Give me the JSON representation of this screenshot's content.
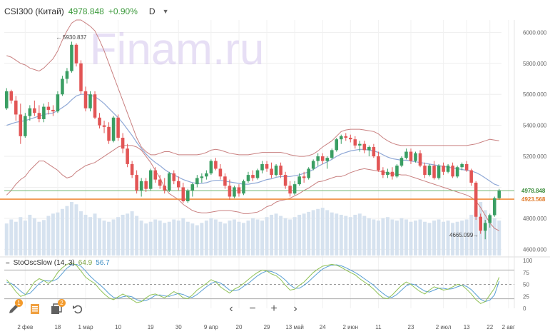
{
  "header": {
    "symbol": "CSI300 (Китай)",
    "price": "4978.848",
    "change": "+0.90%",
    "timeframe": "D"
  },
  "watermark": "Finam.ru",
  "price_axis": {
    "ticks": [
      "6000.000",
      "5800.000",
      "5600.000",
      "5400.000",
      "5200.000",
      "4800.000",
      "4600.000"
    ],
    "last_price_label": "4978.848",
    "level_label": "4923.568",
    "colors": {
      "last": "#6fb56f",
      "level": "#f08c3c"
    }
  },
  "annotations": {
    "high": "5930.837",
    "low": "4665.099"
  },
  "time_axis": [
    "2 фев",
    "18",
    "1 мар",
    "10",
    "19",
    "30",
    "9 апр",
    "20",
    "29",
    "13 май",
    "24",
    "2 июн",
    "11",
    "23",
    "2 июл",
    "13",
    "22",
    "2 авг"
  ],
  "oscillator": {
    "name": "StoOscSlow (14, 3)",
    "k_value": "64.9",
    "d_value": "56.7",
    "ticks": [
      "100",
      "75",
      "50",
      "25",
      "0"
    ],
    "colors": {
      "k": "#8fc154",
      "d": "#5a9fd4"
    }
  },
  "toolbar": [
    {
      "icon": "pencil-icon",
      "badge": "1"
    },
    {
      "icon": "document-icon",
      "badge": ""
    },
    {
      "icon": "indicators-icon",
      "badge": "2"
    },
    {
      "icon": "undo-icon",
      "badge": ""
    }
  ],
  "navbar": [
    "chevron-left-icon",
    "zoom-out-icon",
    "zoom-in-icon",
    "chevron-right-icon"
  ],
  "colors": {
    "up": "#3a9e63",
    "down": "#e25555",
    "bb": "#c98080",
    "ma": "#8fa8d6",
    "volume": "#d6e2ef"
  },
  "chart_data": {
    "type": "candlestick",
    "interval": "D",
    "y_range": [
      4560,
      6080
    ],
    "note_volume": "relative volume bars (unitless)",
    "ohlc": [
      [
        5510,
        5640,
        5500,
        5620
      ],
      [
        5620,
        5630,
        5540,
        5560
      ],
      [
        5560,
        5590,
        5430,
        5470
      ],
      [
        5470,
        5540,
        5280,
        5330
      ],
      [
        5330,
        5480,
        5320,
        5460
      ],
      [
        5460,
        5530,
        5430,
        5510
      ],
      [
        5510,
        5560,
        5460,
        5480
      ],
      [
        5480,
        5530,
        5420,
        5440
      ],
      [
        5440,
        5540,
        5420,
        5520
      ],
      [
        5520,
        5550,
        5470,
        5500
      ],
      [
        5500,
        5530,
        5460,
        5490
      ],
      [
        5490,
        5620,
        5480,
        5600
      ],
      [
        5600,
        5720,
        5590,
        5700
      ],
      [
        5700,
        5770,
        5670,
        5750
      ],
      [
        5750,
        5940,
        5740,
        5920
      ],
      [
        5920,
        5930,
        5780,
        5800
      ],
      [
        5800,
        5820,
        5600,
        5620
      ],
      [
        5620,
        5650,
        5490,
        5510
      ],
      [
        5510,
        5620,
        5490,
        5600
      ],
      [
        5600,
        5620,
        5440,
        5450
      ],
      [
        5450,
        5480,
        5380,
        5400
      ],
      [
        5400,
        5430,
        5350,
        5390
      ],
      [
        5390,
        5420,
        5280,
        5300
      ],
      [
        5300,
        5460,
        5290,
        5450
      ],
      [
        5450,
        5470,
        5300,
        5320
      ],
      [
        5320,
        5350,
        5220,
        5250
      ],
      [
        5250,
        5280,
        5130,
        5150
      ],
      [
        5150,
        5170,
        5060,
        5080
      ],
      [
        5080,
        5110,
        4960,
        4980
      ],
      [
        4980,
        5060,
        4940,
        5040
      ],
      [
        5040,
        5060,
        4970,
        4990
      ],
      [
        4990,
        5120,
        4980,
        5110
      ],
      [
        5110,
        5130,
        5030,
        5050
      ],
      [
        5050,
        5080,
        4990,
        5010
      ],
      [
        5010,
        5060,
        4960,
        4980
      ],
      [
        4980,
        5100,
        4970,
        5090
      ],
      [
        5090,
        5110,
        5020,
        5040
      ],
      [
        5040,
        5070,
        4980,
        5000
      ],
      [
        5000,
        5030,
        4900,
        4910
      ],
      [
        4910,
        4990,
        4900,
        4980
      ],
      [
        4980,
        5030,
        4940,
        5020
      ],
      [
        5020,
        5080,
        5000,
        5060
      ],
      [
        5060,
        5090,
        5030,
        5070
      ],
      [
        5070,
        5110,
        5050,
        5090
      ],
      [
        5090,
        5180,
        5080,
        5170
      ],
      [
        5170,
        5190,
        5110,
        5120
      ],
      [
        5120,
        5150,
        5050,
        5070
      ],
      [
        5070,
        5090,
        4990,
        5010
      ],
      [
        5010,
        5050,
        4920,
        4940
      ],
      [
        4940,
        5010,
        4930,
        5000
      ],
      [
        5000,
        5020,
        4940,
        4960
      ],
      [
        4960,
        5050,
        4950,
        5040
      ],
      [
        5040,
        5100,
        5030,
        5080
      ],
      [
        5080,
        5110,
        5040,
        5060
      ],
      [
        5060,
        5120,
        5050,
        5110
      ],
      [
        5110,
        5170,
        5090,
        5150
      ],
      [
        5150,
        5170,
        5100,
        5120
      ],
      [
        5120,
        5160,
        5060,
        5080
      ],
      [
        5080,
        5150,
        5070,
        5140
      ],
      [
        5140,
        5160,
        5060,
        5080
      ],
      [
        5080,
        5100,
        4990,
        5010
      ],
      [
        5010,
        5040,
        4940,
        4960
      ],
      [
        4960,
        5040,
        4950,
        5020
      ],
      [
        5020,
        5090,
        5010,
        5070
      ],
      [
        5070,
        5100,
        5030,
        5060
      ],
      [
        5060,
        5130,
        5050,
        5120
      ],
      [
        5120,
        5180,
        5110,
        5170
      ],
      [
        5170,
        5220,
        5140,
        5200
      ],
      [
        5200,
        5220,
        5150,
        5170
      ],
      [
        5170,
        5200,
        5120,
        5190
      ],
      [
        5190,
        5250,
        5180,
        5240
      ],
      [
        5240,
        5320,
        5230,
        5310
      ],
      [
        5310,
        5340,
        5280,
        5330
      ],
      [
        5330,
        5350,
        5300,
        5320
      ],
      [
        5320,
        5340,
        5290,
        5310
      ],
      [
        5310,
        5330,
        5250,
        5270
      ],
      [
        5270,
        5300,
        5230,
        5280
      ],
      [
        5280,
        5300,
        5220,
        5240
      ],
      [
        5240,
        5270,
        5200,
        5260
      ],
      [
        5260,
        5280,
        5190,
        5200
      ],
      [
        5200,
        5230,
        5100,
        5110
      ],
      [
        5110,
        5130,
        5060,
        5080
      ],
      [
        5080,
        5120,
        5060,
        5100
      ],
      [
        5100,
        5130,
        5050,
        5070
      ],
      [
        5070,
        5150,
        5060,
        5140
      ],
      [
        5140,
        5200,
        5130,
        5190
      ],
      [
        5190,
        5250,
        5180,
        5230
      ],
      [
        5230,
        5250,
        5150,
        5170
      ],
      [
        5170,
        5230,
        5160,
        5220
      ],
      [
        5220,
        5240,
        5130,
        5140
      ],
      [
        5140,
        5160,
        5060,
        5080
      ],
      [
        5080,
        5150,
        5070,
        5140
      ],
      [
        5140,
        5170,
        5050,
        5060
      ],
      [
        5060,
        5150,
        5050,
        5140
      ],
      [
        5140,
        5160,
        5080,
        5100
      ],
      [
        5100,
        5150,
        5090,
        5140
      ],
      [
        5140,
        5160,
        5060,
        5070
      ],
      [
        5070,
        5140,
        5060,
        5130
      ],
      [
        5130,
        5160,
        5110,
        5150
      ],
      [
        5150,
        5170,
        5100,
        5110
      ],
      [
        5110,
        5120,
        5010,
        5030
      ],
      [
        5030,
        5040,
        4790,
        4810
      ],
      [
        4810,
        4830,
        4700,
        4720
      ],
      [
        4720,
        4790,
        4665,
        4770
      ],
      [
        4770,
        4830,
        4740,
        4820
      ],
      [
        4820,
        4940,
        4810,
        4930
      ],
      [
        4930,
        4990,
        4920,
        4980
      ]
    ],
    "bb_upper": [
      5850,
      5840,
      5820,
      5800,
      5790,
      5770,
      5760,
      5750,
      5770,
      5800,
      5830,
      5880,
      5950,
      6010,
      6060,
      6080,
      6080,
      6060,
      6040,
      6010,
      5950,
      5880,
      5800,
      5720,
      5640,
      5560,
      5480,
      5400,
      5320,
      5260,
      5230,
      5210,
      5210,
      5220,
      5230,
      5230,
      5220,
      5210,
      5210,
      5210,
      5210,
      5210,
      5215,
      5225,
      5240,
      5245,
      5240,
      5230,
      5220,
      5215,
      5210,
      5210,
      5210,
      5215,
      5220,
      5225,
      5225,
      5225,
      5225,
      5225,
      5220,
      5210,
      5205,
      5200,
      5200,
      5205,
      5215,
      5235,
      5260,
      5280,
      5300,
      5330,
      5360,
      5370,
      5375,
      5375,
      5375,
      5370,
      5365,
      5360,
      5345,
      5320,
      5300,
      5285,
      5275,
      5270,
      5270,
      5270,
      5270,
      5270,
      5270,
      5270,
      5270,
      5270,
      5270,
      5270,
      5270,
      5270,
      5270,
      5270,
      5275,
      5280,
      5290,
      5300,
      5310,
      5305,
      5300
    ],
    "bb_mid": [
      5400,
      5410,
      5420,
      5425,
      5430,
      5440,
      5450,
      5460,
      5470,
      5475,
      5480,
      5495,
      5515,
      5535,
      5565,
      5590,
      5600,
      5600,
      5595,
      5585,
      5565,
      5540,
      5510,
      5480,
      5450,
      5415,
      5375,
      5335,
      5290,
      5250,
      5215,
      5185,
      5160,
      5140,
      5115,
      5095,
      5080,
      5065,
      5050,
      5040,
      5030,
      5025,
      5025,
      5030,
      5040,
      5045,
      5045,
      5040,
      5035,
      5030,
      5025,
      5020,
      5020,
      5025,
      5030,
      5040,
      5050,
      5055,
      5065,
      5070,
      5070,
      5070,
      5075,
      5080,
      5090,
      5100,
      5115,
      5135,
      5150,
      5165,
      5180,
      5200,
      5215,
      5225,
      5235,
      5240,
      5245,
      5245,
      5240,
      5235,
      5225,
      5210,
      5195,
      5185,
      5180,
      5175,
      5175,
      5170,
      5165,
      5160,
      5155,
      5150,
      5145,
      5140,
      5135,
      5130,
      5125,
      5120,
      5115,
      5110,
      5105,
      5095,
      5080,
      5060,
      5040,
      5020,
      5010
    ],
    "bb_lower": [
      4950,
      4980,
      5020,
      5050,
      5070,
      5110,
      5140,
      5170,
      5170,
      5150,
      5130,
      5110,
      5080,
      5060,
      5070,
      5100,
      5120,
      5140,
      5150,
      5160,
      5180,
      5200,
      5220,
      5240,
      5260,
      5270,
      5270,
      5270,
      5260,
      5240,
      5200,
      5160,
      5110,
      5060,
      5000,
      4960,
      4940,
      4920,
      4890,
      4870,
      4850,
      4840,
      4835,
      4835,
      4840,
      4845,
      4850,
      4850,
      4850,
      4845,
      4840,
      4830,
      4830,
      4835,
      4840,
      4855,
      4875,
      4885,
      4905,
      4915,
      4920,
      4930,
      4945,
      4960,
      4980,
      4995,
      5015,
      5035,
      5040,
      5050,
      5060,
      5070,
      5070,
      5080,
      5095,
      5105,
      5115,
      5120,
      5115,
      5110,
      5105,
      5100,
      5090,
      5085,
      5085,
      5080,
      5080,
      5070,
      5060,
      5050,
      5040,
      5030,
      5020,
      5010,
      5000,
      4990,
      4980,
      4970,
      4960,
      4950,
      4935,
      4910,
      4870,
      4820,
      4770,
      4735,
      4720
    ],
    "volume": [
      55,
      62,
      58,
      66,
      60,
      70,
      64,
      58,
      61,
      68,
      72,
      74,
      80,
      85,
      92,
      88,
      76,
      70,
      66,
      72,
      64,
      60,
      58,
      62,
      66,
      70,
      72,
      76,
      68,
      60,
      55,
      58,
      62,
      60,
      56,
      58,
      62,
      60,
      64,
      58,
      55,
      52,
      56,
      60,
      64,
      62,
      58,
      55,
      60,
      62,
      58,
      56,
      60,
      64,
      62,
      60,
      66,
      70,
      72,
      68,
      64,
      62,
      66,
      70,
      72,
      75,
      78,
      80,
      82,
      78,
      74,
      72,
      70,
      68,
      66,
      70,
      72,
      68,
      64,
      62,
      60,
      64,
      66,
      62,
      60,
      64,
      62,
      58,
      60,
      62,
      58,
      56,
      60,
      62,
      58,
      60,
      56,
      58,
      60,
      62,
      70,
      85,
      92,
      78,
      70,
      64,
      60
    ],
    "stoch_k": [
      60,
      48,
      35,
      25,
      28,
      40,
      55,
      62,
      58,
      52,
      60,
      75,
      85,
      92,
      95,
      90,
      78,
      65,
      58,
      52,
      40,
      30,
      22,
      18,
      24,
      30,
      25,
      18,
      12,
      14,
      22,
      28,
      30,
      26,
      22,
      28,
      35,
      30,
      22,
      20,
      28,
      38,
      45,
      52,
      60,
      55,
      45,
      38,
      32,
      40,
      45,
      52,
      60,
      68,
      75,
      80,
      78,
      72,
      68,
      60,
      48,
      38,
      40,
      48,
      55,
      65,
      75,
      82,
      88,
      90,
      92,
      90,
      86,
      80,
      75,
      70,
      62,
      55,
      48,
      40,
      30,
      22,
      20,
      28,
      38,
      48,
      55,
      50,
      42,
      35,
      30,
      38,
      45,
      42,
      38,
      40,
      45,
      50,
      48,
      40,
      30,
      18,
      10,
      14,
      28,
      42,
      64.9
    ],
    "stoch_d": [
      55,
      52,
      45,
      36,
      29,
      31,
      41,
      52,
      58,
      57,
      57,
      62,
      73,
      84,
      91,
      92,
      88,
      78,
      67,
      58,
      50,
      41,
      31,
      23,
      21,
      24,
      26,
      24,
      18,
      15,
      16,
      21,
      27,
      28,
      26,
      25,
      28,
      31,
      29,
      24,
      23,
      29,
      37,
      45,
      52,
      56,
      53,
      46,
      38,
      37,
      39,
      46,
      52,
      60,
      68,
      74,
      78,
      77,
      73,
      67,
      59,
      49,
      42,
      42,
      48,
      56,
      65,
      74,
      82,
      87,
      90,
      91,
      89,
      85,
      80,
      75,
      69,
      62,
      55,
      48,
      39,
      31,
      24,
      23,
      29,
      38,
      47,
      51,
      49,
      42,
      36,
      34,
      38,
      42,
      42,
      40,
      41,
      45,
      48,
      46,
      39,
      29,
      19,
      14,
      17,
      28,
      56.7
    ]
  }
}
